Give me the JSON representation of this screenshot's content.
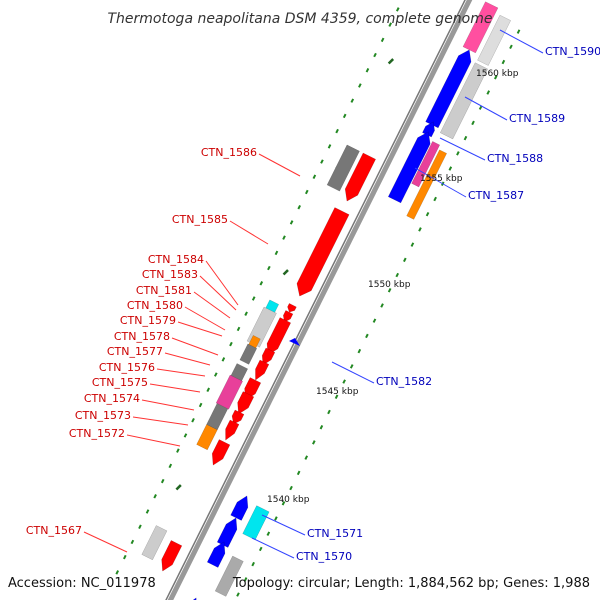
{
  "title": "Thermotoga neapolitana DSM 4359, complete genome",
  "footer": {
    "accession": "Accession: NC_011978",
    "stats": "Topology: circular; Length: 1,884,562 bp; Genes: 1,988"
  },
  "colors": {
    "forward_gene": "#ff0000",
    "reverse_gene": "#0000ff",
    "backbone": "#999999",
    "tick": "#228822",
    "forward_label": "#cc0000",
    "reverse_label": "#0000bb"
  },
  "tick_labels": [
    "1560 kbp",
    "1555 kbp",
    "1550 kbp",
    "1545 kbp",
    "1540 kbp"
  ],
  "forward_labels": [
    "CTN_1586",
    "CTN_1585",
    "CTN_1584",
    "CTN_1583",
    "CTN_1581",
    "CTN_1580",
    "CTN_1579",
    "CTN_1578",
    "CTN_1577",
    "CTN_1576",
    "CTN_1575",
    "CTN_1574",
    "CTN_1573",
    "CTN_1572",
    "CTN_1567"
  ],
  "reverse_labels": [
    "CTN_1590",
    "CTN_1589",
    "CTN_1588",
    "CTN_1587",
    "CTN_1582",
    "CTN_1571",
    "CTN_1570"
  ]
}
